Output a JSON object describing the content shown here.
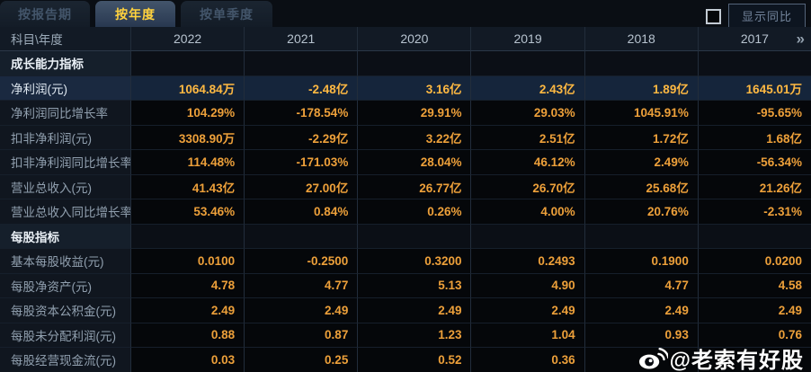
{
  "tabs": [
    {
      "label": "按报告期",
      "active": false
    },
    {
      "label": "按年度",
      "active": true
    },
    {
      "label": "按单季度",
      "active": false
    }
  ],
  "controls": {
    "show_yoy_label": "显示同比",
    "checkbox_checked": false
  },
  "table": {
    "corner_label": "科目\\年度",
    "years": [
      "2022",
      "2021",
      "2020",
      "2019",
      "2018",
      "2017"
    ],
    "more_icon": "»",
    "rows": [
      {
        "type": "section",
        "label": "成长能力指标",
        "values": [
          "",
          "",
          "",
          "",
          "",
          ""
        ]
      },
      {
        "type": "data",
        "highlight": true,
        "label": "净利润(元)",
        "values": [
          "1064.84万",
          "-2.48亿",
          "3.16亿",
          "2.43亿",
          "1.89亿",
          "1645.01万"
        ]
      },
      {
        "type": "data",
        "label": "净利润同比增长率",
        "values": [
          "104.29%",
          "-178.54%",
          "29.91%",
          "29.03%",
          "1045.91%",
          "-95.65%"
        ]
      },
      {
        "type": "data",
        "label": "扣非净利润(元)",
        "values": [
          "3308.90万",
          "-2.29亿",
          "3.22亿",
          "2.51亿",
          "1.72亿",
          "1.68亿"
        ]
      },
      {
        "type": "data",
        "label": "扣非净利润同比增长率",
        "values": [
          "114.48%",
          "-171.03%",
          "28.04%",
          "46.12%",
          "2.49%",
          "-56.34%"
        ]
      },
      {
        "type": "data",
        "label": "营业总收入(元)",
        "values": [
          "41.43亿",
          "27.00亿",
          "26.77亿",
          "26.70亿",
          "25.68亿",
          "21.26亿"
        ]
      },
      {
        "type": "data",
        "label": "营业总收入同比增长率",
        "values": [
          "53.46%",
          "0.84%",
          "0.26%",
          "4.00%",
          "20.76%",
          "-2.31%"
        ]
      },
      {
        "type": "section",
        "label": "每股指标",
        "values": [
          "",
          "",
          "",
          "",
          "",
          ""
        ]
      },
      {
        "type": "data",
        "label": "基本每股收益(元)",
        "values": [
          "0.0100",
          "-0.2500",
          "0.3200",
          "0.2493",
          "0.1900",
          "0.0200"
        ]
      },
      {
        "type": "data",
        "label": "每股净资产(元)",
        "values": [
          "4.78",
          "4.77",
          "5.13",
          "4.90",
          "4.77",
          "4.58"
        ]
      },
      {
        "type": "data",
        "label": "每股资本公积金(元)",
        "values": [
          "2.49",
          "2.49",
          "2.49",
          "2.49",
          "2.49",
          "2.49"
        ]
      },
      {
        "type": "data",
        "label": "每股未分配利润(元)",
        "values": [
          "0.88",
          "0.87",
          "1.23",
          "1.04",
          "0.93",
          "0.76"
        ]
      },
      {
        "type": "data",
        "label": "每股经营现金流(元)",
        "values": [
          "0.03",
          "0.25",
          "0.52",
          "0.36",
          "",
          ""
        ]
      }
    ]
  },
  "watermark": {
    "text": "@老索有好股",
    "icon": "weibo-logo"
  },
  "colors": {
    "value_gold": "#eda03a",
    "highlight_gold": "#ffb942",
    "tab_active_text": "#ffd23e",
    "highlight_row_bg": "#15253b",
    "section_label_bg": "#151f2b"
  }
}
